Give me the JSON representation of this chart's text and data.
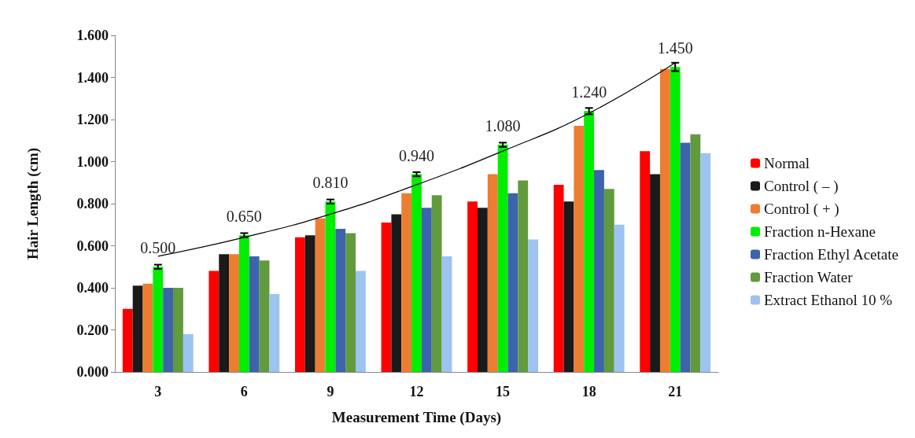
{
  "chart_data": {
    "type": "bar",
    "xlabel": "Measurement Time (Days)",
    "ylabel": "Hair Length (cm)",
    "categories": [
      "3",
      "6",
      "9",
      "12",
      "15",
      "18",
      "21"
    ],
    "ylim": [
      0,
      1.6
    ],
    "yticks": [
      {
        "value": 0,
        "label": "0.000"
      },
      {
        "value": 0.2,
        "label": "0.200"
      },
      {
        "value": 0.4,
        "label": "0.400"
      },
      {
        "value": 0.6,
        "label": "0.600"
      },
      {
        "value": 0.8,
        "label": "0.800"
      },
      {
        "value": 1.0,
        "label": "1.000"
      },
      {
        "value": 1.2,
        "label": "1.200"
      },
      {
        "value": 1.4,
        "label": "1.400"
      },
      {
        "value": 1.6,
        "label": "1.600"
      }
    ],
    "grid": false,
    "legend": "right",
    "series": [
      {
        "name": "Normal",
        "color": "#ff0000",
        "values": [
          0.3,
          0.48,
          0.64,
          0.71,
          0.81,
          0.89,
          1.05
        ]
      },
      {
        "name": "Control ( – )",
        "color": "#1a1a1a",
        "values": [
          0.41,
          0.56,
          0.65,
          0.75,
          0.78,
          0.81,
          0.94
        ]
      },
      {
        "name": "Control ( + )",
        "color": "#ed7d31",
        "values": [
          0.42,
          0.56,
          0.73,
          0.85,
          0.94,
          1.17,
          1.44
        ]
      },
      {
        "name": "Fraction n-Hexane",
        "color": "#00ee00",
        "values": [
          0.5,
          0.65,
          0.81,
          0.94,
          1.08,
          1.24,
          1.45
        ],
        "errors": [
          0.01,
          0.01,
          0.01,
          0.01,
          0.01,
          0.015,
          0.02
        ],
        "value_labels": [
          "0.500",
          "0.650",
          "0.810",
          "0.940",
          "1.080",
          "1.240",
          "1.450"
        ]
      },
      {
        "name": "Fraction Ethyl Acetate",
        "color": "#3c64ac",
        "values": [
          0.4,
          0.55,
          0.68,
          0.78,
          0.85,
          0.96,
          1.09
        ]
      },
      {
        "name": "Fraction Water",
        "color": "#629a3e",
        "values": [
          0.4,
          0.53,
          0.66,
          0.84,
          0.91,
          0.87,
          1.13
        ]
      },
      {
        "name": "Extract Ethanol 10 %",
        "color": "#9dc3f0",
        "values": [
          0.18,
          0.37,
          0.48,
          0.55,
          0.63,
          0.7,
          1.04
        ]
      },
      {
        "type": "line",
        "color": "#000000",
        "marker": "none",
        "x": [
          "3",
          "6",
          "9",
          "12",
          "15",
          "18",
          "21"
        ],
        "values": [
          0.55,
          0.64,
          0.75,
          0.89,
          1.05,
          1.23,
          1.47
        ]
      }
    ]
  }
}
